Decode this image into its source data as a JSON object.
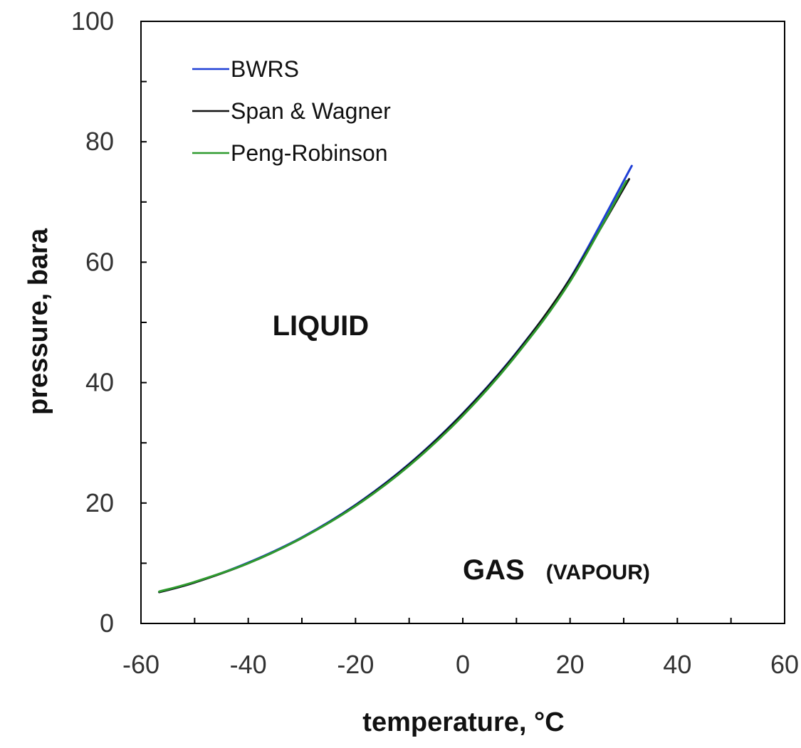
{
  "chart_data": {
    "type": "line",
    "xlabel": "temperature, °C",
    "ylabel": "pressure, bara",
    "xlim": [
      -60,
      60
    ],
    "ylim": [
      0,
      100
    ],
    "xticks": [
      -60,
      -40,
      -20,
      0,
      20,
      40,
      60
    ],
    "yticks": [
      0,
      20,
      40,
      60,
      80,
      100
    ],
    "x_minor_step": 10,
    "y_minor_step": 10,
    "grid": false,
    "legend_position": "top-left",
    "series": [
      {
        "name": "BWRS",
        "color": "#1f3fd6",
        "x": [
          -56.6,
          -50,
          -40,
          -30,
          -20,
          -10,
          0,
          10,
          20,
          31.5
        ],
        "y": [
          5.2,
          6.8,
          10.1,
          14.3,
          19.7,
          26.5,
          34.9,
          45.0,
          57.3,
          76.0
        ]
      },
      {
        "name": "Span & Wagner",
        "color": "#111111",
        "x": [
          -56.6,
          -50,
          -40,
          -30,
          -20,
          -10,
          0,
          10,
          20,
          31.0
        ],
        "y": [
          5.2,
          6.8,
          10.0,
          14.2,
          19.6,
          26.4,
          34.8,
          44.9,
          57.2,
          73.8
        ]
      },
      {
        "name": "Peng-Robinson",
        "color": "#2e9a2e",
        "x": [
          -56.6,
          -50,
          -40,
          -30,
          -20,
          -10,
          0,
          10,
          20,
          30.5
        ],
        "y": [
          5.3,
          6.9,
          10.0,
          14.2,
          19.5,
          26.2,
          34.5,
          44.6,
          56.8,
          73.5
        ]
      }
    ],
    "annotations": [
      {
        "id": "liquid",
        "text": "LIQUID",
        "x": -35.5,
        "y": 49.5,
        "size": "large"
      },
      {
        "id": "gas",
        "text": "GAS",
        "x": 0,
        "y": 9.0,
        "size": "large"
      },
      {
        "id": "vapour",
        "text": "(VAPOUR)",
        "x": 15.5,
        "y": 9.0,
        "size": "small"
      }
    ]
  }
}
